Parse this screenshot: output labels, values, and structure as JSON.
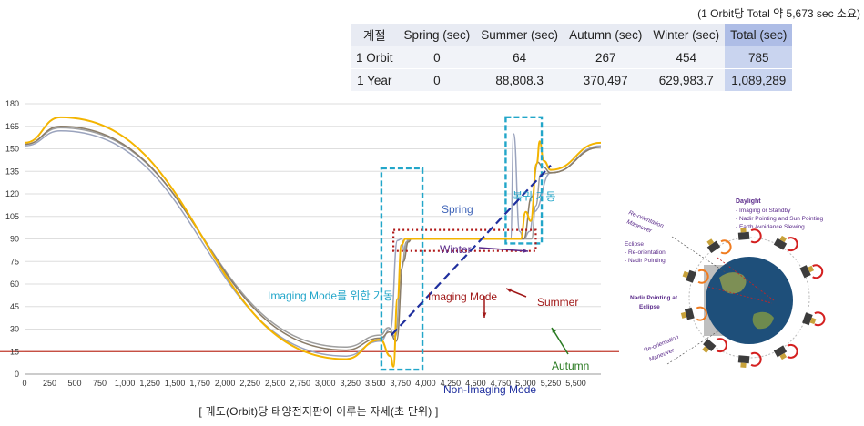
{
  "note": "(1 Orbit당 Total 약 5,673 sec 소요)",
  "table": {
    "headers": [
      "계절",
      "Spring (sec)",
      "Summer (sec)",
      "Autumn (sec)",
      "Winter (sec)",
      "Total (sec)"
    ],
    "rows": [
      [
        "1 Orbit",
        "0",
        "64",
        "267",
        "454",
        "785"
      ],
      [
        "1 Year",
        "0",
        "88,808.3",
        "370,497",
        "629,983.7",
        "1,089,289"
      ]
    ]
  },
  "caption": "[ 궤도(Orbit)당 태양전지판이 이루는 자세(초 단위) ]",
  "chart_data": {
    "type": "line",
    "title": "",
    "xlabel": "",
    "ylabel": "",
    "xlim": [
      0,
      5750
    ],
    "ylim": [
      0,
      180
    ],
    "x_ticks": [
      "0",
      "250",
      "500",
      "750",
      "1,000",
      "1,250",
      "1,500",
      "1,750",
      "2,000",
      "2,250",
      "2,500",
      "2,750",
      "3,000",
      "3,250",
      "3,500",
      "3,750",
      "4,000",
      "4,250",
      "4,500",
      "4,750",
      "5,000",
      "5,250",
      "5,500"
    ],
    "y_ticks": [
      "0",
      "15",
      "30",
      "45",
      "60",
      "75",
      "90",
      "105",
      "120",
      "135",
      "150",
      "165",
      "180"
    ],
    "grid": "horizontal",
    "reference_line": {
      "y": 15,
      "color": "#c0392b"
    },
    "series": [
      {
        "color": "#9aa3bd",
        "points": [
          [
            0,
            152
          ],
          [
            360,
            162
          ],
          [
            3200,
            12
          ],
          [
            3550,
            22
          ],
          [
            3650,
            30
          ],
          [
            3720,
            89
          ],
          [
            3760,
            90
          ],
          [
            3790,
            82
          ],
          [
            3830,
            90
          ],
          [
            4850,
            90
          ],
          [
            4880,
            160
          ],
          [
            4940,
            95
          ],
          [
            4980,
            90
          ],
          [
            5040,
            95
          ],
          [
            5080,
            108
          ],
          [
            5250,
            134
          ],
          [
            5750,
            152
          ]
        ]
      },
      {
        "color": "#9e9e9e",
        "points": [
          [
            0,
            153
          ],
          [
            360,
            164
          ],
          [
            3200,
            18
          ],
          [
            3550,
            26
          ],
          [
            3630,
            31
          ],
          [
            3700,
            25
          ],
          [
            3760,
            70
          ],
          [
            3810,
            88
          ],
          [
            3850,
            90
          ],
          [
            5060,
            90
          ],
          [
            5100,
            112
          ],
          [
            5150,
            133
          ],
          [
            5250,
            134
          ],
          [
            5750,
            151
          ]
        ]
      },
      {
        "color": "#8a7d69",
        "points": [
          [
            0,
            153
          ],
          [
            360,
            165
          ],
          [
            3200,
            16
          ],
          [
            3550,
            24
          ],
          [
            3640,
            28
          ],
          [
            3710,
            22
          ],
          [
            3780,
            75
          ],
          [
            3830,
            88
          ],
          [
            3860,
            90
          ],
          [
            4980,
            90
          ],
          [
            5060,
            118
          ],
          [
            5120,
            141
          ],
          [
            5170,
            138
          ],
          [
            5250,
            134
          ],
          [
            5750,
            151
          ]
        ]
      },
      {
        "color": "#f3b400",
        "points": [
          [
            0,
            154
          ],
          [
            360,
            171
          ],
          [
            3200,
            10
          ],
          [
            3550,
            23
          ],
          [
            3650,
            12
          ],
          [
            3680,
            5
          ],
          [
            3720,
            50
          ],
          [
            3760,
            86
          ],
          [
            3800,
            90
          ],
          [
            4950,
            90
          ],
          [
            5000,
            108
          ],
          [
            5050,
            102
          ],
          [
            5110,
            140
          ],
          [
            5140,
            155
          ],
          [
            5180,
            142
          ],
          [
            5250,
            136
          ],
          [
            5750,
            154
          ]
        ]
      }
    ],
    "annotations": [
      "Spring",
      "복귀 기동",
      "Winter",
      "Summer",
      "Autumn",
      "Imaging Mode를 위한 기동",
      "Imaging Mode",
      "Non-Imaging Mode"
    ]
  },
  "diagram": {
    "daylight_title": "Daylight",
    "daylight_items": [
      "- Imaging or Standby",
      "- Nadir Pointing and Sun Pointing",
      "- Earth Avoidance Slewing"
    ],
    "eclipse_title": "Eclipse",
    "eclipse_items": [
      "- Re-orientation",
      "- Nadir Pointing"
    ],
    "nadir_eclipse_1": "Nadir Pointing at",
    "nadir_eclipse_2": "Eclipse",
    "reorient_top_1": "Re-orientation",
    "reorient_top_2": "Maneuver",
    "reorient_bottom_1": "Re-orientation",
    "reorient_bottom_2": "Maneuver"
  },
  "colors": {
    "grid": "#dedede",
    "dashed_box": "#22a6c9",
    "dotted_box": "#b01818",
    "diagonal": "#1f2f9e",
    "diagram_label": "#5a2a8a"
  }
}
